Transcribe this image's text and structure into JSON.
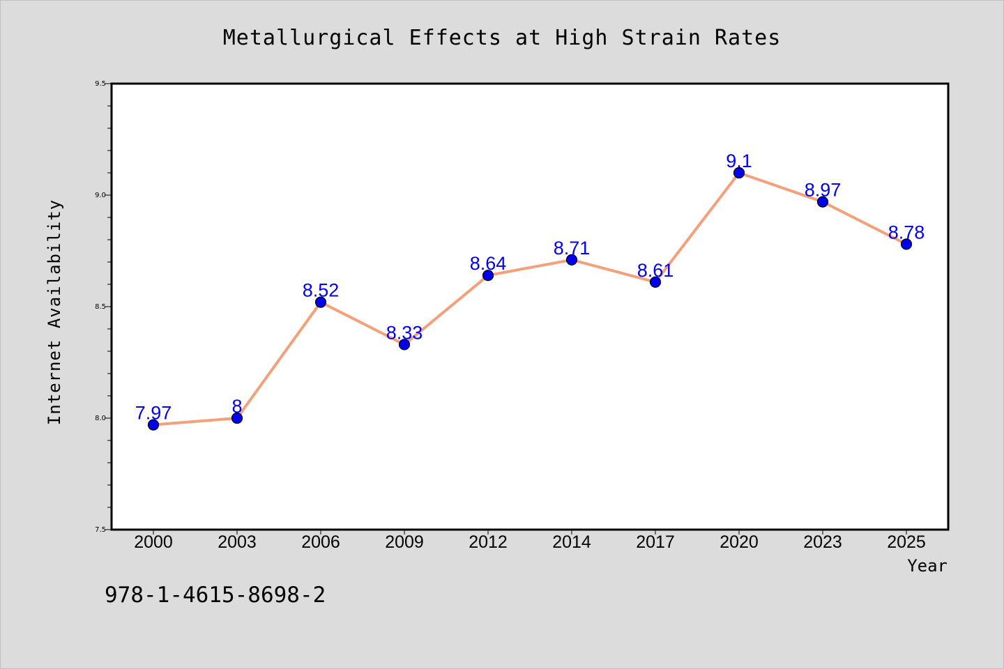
{
  "chart_data": {
    "type": "line",
    "title": "Metallurgical Effects at High Strain Rates",
    "xlabel": "Year",
    "ylabel": "Internet Availability",
    "categories": [
      "2000",
      "2003",
      "2006",
      "2009",
      "2012",
      "2014",
      "2017",
      "2020",
      "2023",
      "2025"
    ],
    "series": [
      {
        "values": [
          7.97,
          8,
          8.52,
          8.33,
          8.64,
          8.71,
          8.61,
          9.1,
          8.97,
          8.78
        ]
      }
    ],
    "data_labels": [
      "7.97",
      "8",
      "8.52",
      "8.33",
      "8.64",
      "8.71",
      "8.61",
      "9.1",
      "8.97",
      "8.78"
    ],
    "ylim": [
      7.5,
      9.5
    ],
    "yticks": [
      "7.5",
      "8.0",
      "8.5",
      "9.0",
      "9.5"
    ],
    "grid": false,
    "line_color": "#f4a07a",
    "marker_color": "#0000ee",
    "label_color": "#0000ff"
  },
  "footer_text": "978-1-4615-8698-2"
}
